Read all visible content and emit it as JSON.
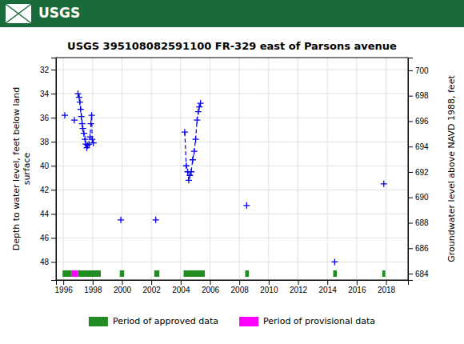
{
  "chart_data": {
    "type": "line",
    "title": "USGS 395108082591100 FR-329 east of Parsons avenue",
    "annotations": [
      "USGS"
    ],
    "ylabel": "Depth to water level, feet below land\nsurface",
    "y2label": "Groundwater level above NAVD 1988, feet",
    "xlim": [
      1995.5,
      2019.5
    ],
    "xticks": [
      1996,
      1998,
      2000,
      2002,
      2004,
      2006,
      2008,
      2010,
      2012,
      2014,
      2016,
      2018
    ],
    "ylim": [
      49.5,
      31
    ],
    "yticks": [
      32,
      34,
      36,
      38,
      40,
      42,
      44,
      46,
      48
    ],
    "y2lim": [
      683.5,
      701
    ],
    "y2ticks": [
      684,
      686,
      688,
      690,
      692,
      694,
      696,
      698,
      700
    ],
    "grid": true,
    "legend": "bottom",
    "series": [
      {
        "type": "line",
        "color": "#0000ee",
        "marker": "plus",
        "line_style": "dashed",
        "x": [
          1996.1,
          null,
          1996.75,
          null,
          1997.0,
          1997.08,
          1997.13,
          1997.18,
          1997.23,
          1997.28,
          1997.33,
          1997.4,
          1997.48,
          1997.53,
          1997.6,
          1997.65,
          1997.75,
          1997.82,
          1997.88,
          1997.93,
          1997.97,
          1998.05,
          null,
          1999.92,
          null,
          2002.3,
          null,
          2004.28,
          2004.38,
          2004.48,
          2004.55,
          2004.63,
          2004.72,
          2004.82,
          2004.92,
          2005.02,
          2005.12,
          2005.2,
          2005.27,
          2005.35,
          null,
          2008.5,
          null,
          2014.5,
          null,
          2017.85
        ],
        "values": [
          35.8,
          null,
          36.2,
          null,
          34.0,
          34.3,
          34.7,
          35.3,
          35.9,
          36.5,
          36.9,
          37.3,
          37.8,
          38.2,
          38.5,
          38.3,
          38.2,
          37.6,
          36.5,
          35.8,
          37.8,
          38.1,
          null,
          44.5,
          null,
          44.5,
          null,
          37.2,
          40.0,
          40.5,
          41.2,
          40.8,
          40.5,
          39.5,
          38.8,
          37.8,
          36.2,
          35.5,
          35.1,
          34.8,
          null,
          43.3,
          null,
          48.0,
          null,
          41.5
        ]
      },
      {
        "type": "range",
        "name": "Period of approved data",
        "color": "#228B22",
        "ranges": [
          [
            1995.95,
            1996.55
          ],
          [
            1997.0,
            1998.55
          ],
          [
            1999.85,
            2000.15
          ],
          [
            2002.2,
            2002.55
          ],
          [
            2004.2,
            2005.65
          ],
          [
            2008.4,
            2008.65
          ],
          [
            2014.4,
            2014.65
          ],
          [
            2017.75,
            2017.95
          ]
        ]
      },
      {
        "type": "range",
        "name": "Period of provisional data",
        "color": "#FF00FF",
        "ranges": [
          [
            1996.55,
            1997.0
          ]
        ]
      }
    ]
  }
}
